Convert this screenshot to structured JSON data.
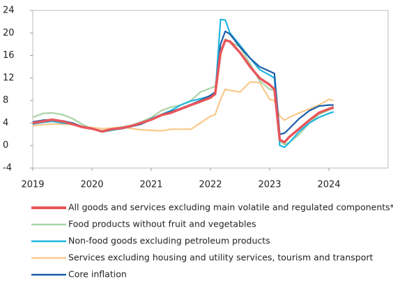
{
  "chart_data": {
    "type": "line",
    "x": [
      2019,
      2019.17,
      2019.33,
      2019.5,
      2019.67,
      2019.83,
      2020,
      2020.17,
      2020.33,
      2020.5,
      2020.67,
      2020.83,
      2021,
      2021.17,
      2021.33,
      2021.5,
      2021.67,
      2021.83,
      2022,
      2022.08,
      2022.17,
      2022.25,
      2022.33,
      2022.5,
      2022.67,
      2022.83,
      2023,
      2023.08,
      2023.17,
      2023.25,
      2023.33,
      2023.5,
      2023.67,
      2023.83,
      2024,
      2024.08
    ],
    "xlim": [
      2019,
      2025
    ],
    "xticks": [
      2019,
      2020,
      2021,
      2022,
      2023,
      2024
    ],
    "ylim": [
      -4,
      24
    ],
    "yticks": [
      -4,
      0,
      4,
      8,
      12,
      16,
      20,
      24
    ],
    "series": [
      {
        "name": "All goods and services excluding main volatile and regulated components*",
        "color": "#e8565a",
        "values": [
          4.0,
          4.3,
          4.6,
          4.3,
          3.8,
          3.3,
          3.0,
          2.5,
          2.9,
          3.1,
          3.5,
          4.0,
          4.6,
          5.4,
          5.8,
          6.5,
          7.2,
          7.8,
          8.5,
          9.2,
          16.5,
          18.7,
          18.5,
          16.5,
          14.0,
          12.0,
          10.8,
          10.0,
          1.0,
          0.6,
          1.5,
          3.0,
          4.5,
          5.8,
          6.5,
          6.8
        ]
      },
      {
        "name": "Food products without fruit and vegetables",
        "color": "#a9d4a6",
        "values": [
          5.0,
          5.7,
          5.8,
          5.5,
          4.8,
          3.8,
          3.0,
          2.4,
          2.9,
          3.3,
          3.6,
          4.2,
          5.0,
          6.2,
          6.8,
          7.2,
          8.0,
          9.5,
          10.2,
          10.5,
          16.0,
          18.9,
          18.5,
          17.5,
          14.5,
          11.5,
          10.0,
          9.8,
          0.8,
          0.2,
          0.5,
          2.0,
          4.0,
          5.5,
          6.3,
          6.6
        ]
      },
      {
        "name": "Non-food goods excluding petroleum products",
        "color": "#1fb5e0",
        "values": [
          3.8,
          4.1,
          4.3,
          4.0,
          3.8,
          3.3,
          3.0,
          2.4,
          2.7,
          3.0,
          3.4,
          3.8,
          4.8,
          5.5,
          6.2,
          7.2,
          7.9,
          8.3,
          8.8,
          9.0,
          22.4,
          22.3,
          20.0,
          17.8,
          15.5,
          13.5,
          12.5,
          12.0,
          0.0,
          -0.3,
          0.5,
          2.5,
          4.0,
          5.0,
          5.7,
          6.0
        ]
      },
      {
        "name": "Services excluding housing and utility services, tourism and transport",
        "color": "#f9c98a",
        "values": [
          3.5,
          3.7,
          3.8,
          3.8,
          3.7,
          3.4,
          3.2,
          3.0,
          3.1,
          3.3,
          3.0,
          2.8,
          2.7,
          2.6,
          2.9,
          2.9,
          2.9,
          4.0,
          5.2,
          5.5,
          8.2,
          10.0,
          9.8,
          9.5,
          11.3,
          11.2,
          8.2,
          8.0,
          5.2,
          4.5,
          5.0,
          5.8,
          6.5,
          7.2,
          8.2,
          8.0
        ]
      },
      {
        "name": "Core inflation",
        "color": "#1a5ea8",
        "values": [
          4.2,
          4.5,
          4.6,
          4.4,
          4.0,
          3.4,
          3.0,
          2.5,
          2.9,
          3.0,
          3.4,
          3.8,
          4.6,
          5.5,
          6.0,
          6.6,
          7.3,
          8.0,
          8.9,
          9.5,
          18.0,
          20.3,
          19.8,
          17.5,
          15.5,
          14.0,
          13.2,
          12.8,
          2.0,
          2.2,
          3.0,
          4.8,
          6.2,
          7.0,
          7.2,
          7.2
        ]
      }
    ]
  }
}
